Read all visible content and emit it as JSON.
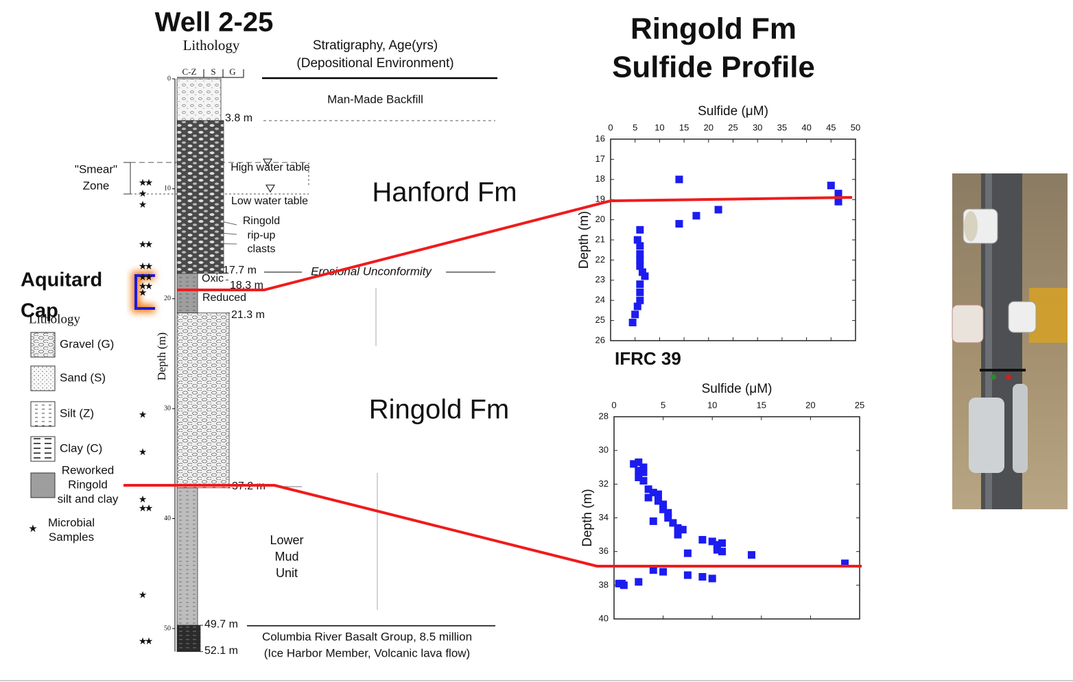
{
  "well_log": {
    "title": "Well 2-25",
    "lithology_heading": "Lithology",
    "grain_columns": [
      "C-Z",
      "S",
      "G"
    ],
    "stratigraphy_heading": [
      "Stratigraphy, Age(yrs)",
      "(Depositional Environment)"
    ],
    "depth_label": "Depth (m)",
    "depth_lim": [
      0,
      50
    ],
    "depth_ticks": [
      0,
      10,
      20,
      30,
      40,
      50
    ],
    "layers": [
      {
        "top": 0,
        "bottom": 3.8,
        "lithology": "backfill"
      },
      {
        "top": 3.8,
        "bottom": 17.7,
        "lithology": "hanford"
      },
      {
        "top": 17.7,
        "bottom": 21.3,
        "lithology": "reworked"
      },
      {
        "top": 21.3,
        "bottom": 37.2,
        "lithology": "gravel"
      },
      {
        "top": 37.2,
        "bottom": 49.7,
        "lithology": "silt"
      },
      {
        "top": 49.7,
        "bottom": 52.1,
        "lithology": "basalt"
      }
    ],
    "depth_markers": [
      {
        "value": 3.8,
        "label": "3.8 m"
      },
      {
        "value": 17.7,
        "label": "17.7 m"
      },
      {
        "value": 18.3,
        "label": "18.3 m"
      },
      {
        "value": 21.3,
        "label": "21.3 m"
      },
      {
        "value": 37.2,
        "label": "37.2 m"
      },
      {
        "value": 49.7,
        "label": "49.7 m"
      },
      {
        "value": 52.1,
        "label": "52.1 m"
      }
    ],
    "units": {
      "backfill": "Man-Made Backfill",
      "high_water_table": "High water table",
      "low_water_table": "Low water table",
      "rip_up": [
        "Ringold",
        "rip-up",
        "clasts"
      ],
      "oxic": "Oxic",
      "reduced": "Reduced",
      "unconformity": "Erosional Unconformity",
      "lower_mud": [
        "Lower",
        "Mud",
        "Unit"
      ],
      "basalt": [
        "Columbia River Basalt Group, 8.5 million",
        "(Ice Harbor Member, Volcanic lava flow)"
      ]
    },
    "smear_zone": [
      "\"Smear\"",
      "Zone"
    ],
    "microbial_samples": [
      {
        "depth": 9.5,
        "count": 2
      },
      {
        "depth": 10.5,
        "count": 1
      },
      {
        "depth": 11.5,
        "count": 1
      },
      {
        "depth": 15.1,
        "count": 2
      },
      {
        "depth": 17.1,
        "count": 2
      },
      {
        "depth": 18.1,
        "count": 2
      },
      {
        "depth": 18.9,
        "count": 2
      },
      {
        "depth": 19.5,
        "count": 1
      },
      {
        "depth": 30.6,
        "count": 1
      },
      {
        "depth": 34.0,
        "count": 1
      },
      {
        "depth": 38.3,
        "count": 1
      },
      {
        "depth": 39.1,
        "count": 2
      },
      {
        "depth": 47.0,
        "count": 1
      },
      {
        "depth": 51.2,
        "count": 2
      }
    ],
    "legend": {
      "title": "Lithology",
      "items": [
        {
          "label": [
            "Gravel (G)"
          ],
          "pattern": "gravel"
        },
        {
          "label": [
            "Sand (S)"
          ],
          "pattern": "sand"
        },
        {
          "label": [
            "Silt (Z)"
          ],
          "pattern": "silt"
        },
        {
          "label": [
            "Clay (C)"
          ],
          "pattern": "clay"
        },
        {
          "label": [
            "Reworked",
            "Ringold",
            "silt and clay"
          ],
          "pattern": "reworked"
        },
        {
          "label": [
            "Microbial",
            "Samples"
          ],
          "pattern": "star"
        }
      ]
    }
  },
  "formations": {
    "hanford": "Hanford Fm",
    "ringold": "Ringold Fm",
    "aquitard": [
      "Aquitard",
      "Cap"
    ]
  },
  "profile_title": [
    "Ringold Fm",
    "Sulfide Profile"
  ],
  "chart_data": [
    {
      "type": "scatter",
      "marker": "square",
      "color": "#1c1cf0",
      "x_label": "Sulfide (μM)",
      "y_label": "Depth (m)",
      "caption": "IFRC 39",
      "x": [
        14,
        45,
        46.5,
        46.5,
        22,
        17.5,
        14,
        6,
        5.5,
        6,
        6,
        6,
        6,
        6.5,
        7,
        6,
        6,
        6,
        5.5,
        5,
        4.5
      ],
      "y": [
        18,
        18.3,
        18.7,
        19.1,
        19.5,
        19.8,
        20.2,
        20.5,
        21,
        21.3,
        21.7,
        22,
        22.3,
        22.6,
        22.8,
        23.2,
        23.6,
        24,
        24.3,
        24.7,
        25.1
      ],
      "xlim": [
        0,
        50
      ],
      "ylim": [
        26,
        16
      ],
      "xticks": [
        0,
        5,
        10,
        15,
        20,
        25,
        30,
        35,
        40,
        45,
        50
      ],
      "yticks": [
        16,
        17,
        18,
        19,
        20,
        21,
        22,
        23,
        24,
        25,
        26
      ]
    },
    {
      "type": "scatter",
      "marker": "square",
      "color": "#1c1cf0",
      "x_label": "Sulfide (μM)",
      "y_label": "Depth (m)",
      "x": [
        2,
        2.5,
        3,
        2.5,
        3,
        2.5,
        3,
        3.5,
        3.5,
        4,
        4.5,
        4.5,
        5,
        5,
        5.5,
        5.5,
        6,
        6.5,
        7,
        6.5,
        4,
        7.5,
        9,
        10,
        10.5,
        11,
        10.5,
        11,
        14,
        23.5,
        4,
        5,
        7.5,
        9,
        10,
        2.5,
        0.5,
        1,
        0.8
      ],
      "y": [
        30.8,
        30.7,
        31,
        31.2,
        31.3,
        31.6,
        31.8,
        32.3,
        32.8,
        32.5,
        32.6,
        33,
        33.2,
        33.5,
        33.7,
        34,
        34.3,
        34.6,
        34.7,
        35,
        34.2,
        36.1,
        35.3,
        35.4,
        35.6,
        35.5,
        35.9,
        36,
        36.2,
        36.7,
        37.1,
        37.2,
        37.4,
        37.5,
        37.6,
        37.8,
        37.9,
        38,
        37.9
      ],
      "xlim": [
        0,
        25
      ],
      "ylim": [
        40,
        28
      ],
      "xticks": [
        0,
        5,
        10,
        15,
        20,
        25
      ],
      "yticks": [
        28,
        30,
        32,
        34,
        36,
        38,
        40
      ]
    }
  ]
}
